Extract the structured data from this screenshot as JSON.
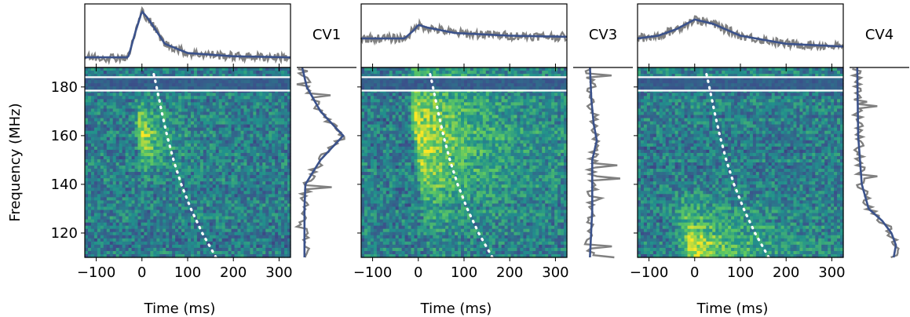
{
  "figure": {
    "ylabel": "Frequency (MHz)",
    "xlabel": "Time (ms)"
  },
  "colors": {
    "trace": "#808080",
    "fit": "#3b528b",
    "marker": "#ffffff",
    "colormap": [
      "#440154",
      "#3b528b",
      "#21918c",
      "#5ec962",
      "#fde725"
    ]
  },
  "chart_data": [
    {
      "type": "heatmap",
      "name": "CV1",
      "xlim": [
        -125,
        325
      ],
      "ylim": [
        110,
        188
      ],
      "xticks": [
        -100,
        0,
        100,
        200,
        300
      ],
      "xtick_labels": [
        "−100",
        "0",
        "100",
        "200",
        "300"
      ],
      "yticks": [
        120,
        140,
        160,
        180
      ],
      "ytick_labels": [
        "120",
        "140",
        "160",
        "180"
      ],
      "masked_band_mhz": [
        178.5,
        184
      ],
      "burst": {
        "center_ms": 0,
        "freq_center_mhz": 160,
        "freq_width_mhz": 12,
        "rise_ms": 10,
        "decay_ms": 45
      },
      "profile_fit": {
        "t": [
          -125,
          -30,
          -15,
          0,
          15,
          50,
          100,
          200,
          325
        ],
        "v": [
          0.1,
          0.1,
          0.55,
          0.95,
          0.8,
          0.35,
          0.18,
          0.12,
          0.1
        ]
      },
      "spectrum_fit": {
        "f": [
          110,
          130,
          140,
          150,
          160,
          170,
          180,
          188
        ],
        "v": [
          0.1,
          0.1,
          0.12,
          0.45,
          0.95,
          0.45,
          0.15,
          0.05
        ]
      },
      "dispersion_curve": {
        "f": [
          110,
          120,
          130,
          140,
          150,
          160,
          170,
          180,
          186
        ],
        "t": [
          162,
          132,
          107,
          86,
          69,
          55,
          43,
          32,
          25
        ]
      }
    },
    {
      "type": "heatmap",
      "name": "CV3",
      "xlim": [
        -125,
        325
      ],
      "ylim": [
        110,
        188
      ],
      "xticks": [
        -100,
        0,
        100,
        200,
        300
      ],
      "xtick_labels": [
        "−100",
        "0",
        "100",
        "200",
        "300"
      ],
      "yticks": [
        120,
        140,
        160,
        180
      ],
      "ytick_labels": [
        "",
        "",
        "",
        ""
      ],
      "masked_band_mhz": [
        178.5,
        184
      ],
      "burst": {
        "center_ms": 0,
        "freq_center_mhz": 160,
        "freq_width_mhz": 30,
        "rise_ms": 10,
        "decay_ms": 150
      },
      "profile_fit": {
        "t": [
          -125,
          -30,
          -10,
          0,
          20,
          80,
          200,
          325
        ],
        "v": [
          0.45,
          0.45,
          0.6,
          0.7,
          0.65,
          0.55,
          0.5,
          0.48
        ]
      },
      "spectrum_fit": {
        "f": [
          110,
          130,
          150,
          158,
          165,
          175,
          188
        ],
        "v": [
          0.3,
          0.35,
          0.35,
          0.45,
          0.38,
          0.33,
          0.3
        ]
      },
      "dispersion_curve": {
        "f": [
          110,
          120,
          130,
          140,
          150,
          160,
          170,
          180,
          186
        ],
        "t": [
          162,
          132,
          107,
          86,
          69,
          55,
          43,
          32,
          25
        ]
      }
    },
    {
      "type": "heatmap",
      "name": "CV4",
      "xlim": [
        -125,
        325
      ],
      "ylim": [
        110,
        188
      ],
      "xticks": [
        -100,
        0,
        100,
        200,
        300
      ],
      "xtick_labels": [
        "−100",
        "0",
        "100",
        "200",
        "300"
      ],
      "yticks": [
        120,
        140,
        160,
        180
      ],
      "ytick_labels": [
        "",
        "",
        "",
        ""
      ],
      "masked_band_mhz": [
        178.5,
        184
      ],
      "burst": {
        "center_ms": 0,
        "freq_center_mhz": 112,
        "freq_width_mhz": 18,
        "rise_ms": 25,
        "decay_ms": 120
      },
      "profile_fit": {
        "t": [
          -125,
          -80,
          -40,
          0,
          40,
          100,
          200,
          325
        ],
        "v": [
          0.45,
          0.5,
          0.62,
          0.8,
          0.72,
          0.5,
          0.35,
          0.3
        ]
      },
      "spectrum_fit": {
        "f": [
          110,
          115,
          120,
          125,
          130,
          140,
          160,
          188
        ],
        "v": [
          0.9,
          0.95,
          0.85,
          0.65,
          0.35,
          0.2,
          0.12,
          0.1
        ]
      },
      "dispersion_curve": {
        "f": [
          110,
          120,
          130,
          140,
          150,
          160,
          170,
          180,
          186
        ],
        "t": [
          162,
          132,
          107,
          86,
          69,
          55,
          43,
          32,
          25
        ]
      }
    }
  ]
}
